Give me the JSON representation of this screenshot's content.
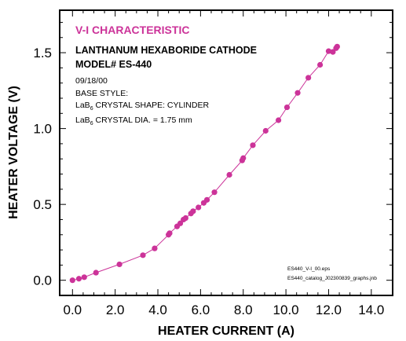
{
  "chart_data": {
    "type": "line",
    "title": "V-I CHARACTERISTIC",
    "subtitle": "LANTHANUM HEXABORIDE CATHODE",
    "model": "MODEL# ES-440",
    "xlabel": "HEATER CURRENT (A)",
    "ylabel": "HEATER VOLTAGE (V)",
    "xlim": [
      -0.6,
      15.0
    ],
    "ylim": [
      -0.1,
      1.78
    ],
    "xticks": [
      "0.0",
      "2.0",
      "4.0",
      "6.0",
      "8.0",
      "10.0",
      "12.0",
      "14.0"
    ],
    "yticks": [
      "0.0",
      "0.5",
      "1.0",
      "1.5"
    ],
    "grid": false,
    "legend": "none",
    "series": [
      {
        "color": "#cc3399",
        "marker": "circle",
        "x": [
          0.0,
          0.3,
          0.55,
          1.1,
          2.2,
          3.3,
          3.85,
          4.5,
          4.55,
          4.9,
          5.05,
          5.2,
          5.3,
          5.55,
          5.65,
          5.9,
          6.15,
          6.3,
          6.65,
          7.35,
          7.95,
          8.0,
          8.45,
          9.05,
          9.65,
          10.05,
          10.55,
          11.05,
          11.6,
          12.0,
          12.2,
          12.35,
          12.4
        ],
        "y": [
          0.0,
          0.01,
          0.02,
          0.05,
          0.105,
          0.165,
          0.21,
          0.3,
          0.31,
          0.355,
          0.375,
          0.4,
          0.41,
          0.44,
          0.455,
          0.48,
          0.51,
          0.53,
          0.58,
          0.695,
          0.79,
          0.805,
          0.89,
          0.985,
          1.055,
          1.14,
          1.235,
          1.335,
          1.42,
          1.51,
          1.505,
          1.53,
          1.54
        ]
      }
    ]
  },
  "annotation": {
    "title": "V-I CHARACTERISTIC",
    "line1": "LANTHANUM HEXABORIDE CATHODE",
    "line2": "MODEL# ES-440",
    "date": "09/18/00",
    "base_style": "BASE STYLE:",
    "shape_pre": "LaB",
    "shape_sub": "6",
    "shape_post": " CRYSTAL SHAPE:  CYLINDER",
    "dia_pre": "LaB",
    "dia_sub": "6",
    "dia_post": " CRYSTAL DIA. = 1.75 mm",
    "file1": "ES440_V-I_00.eps",
    "file2": "ES440_catalog_J02300839_graphs.jnb"
  }
}
